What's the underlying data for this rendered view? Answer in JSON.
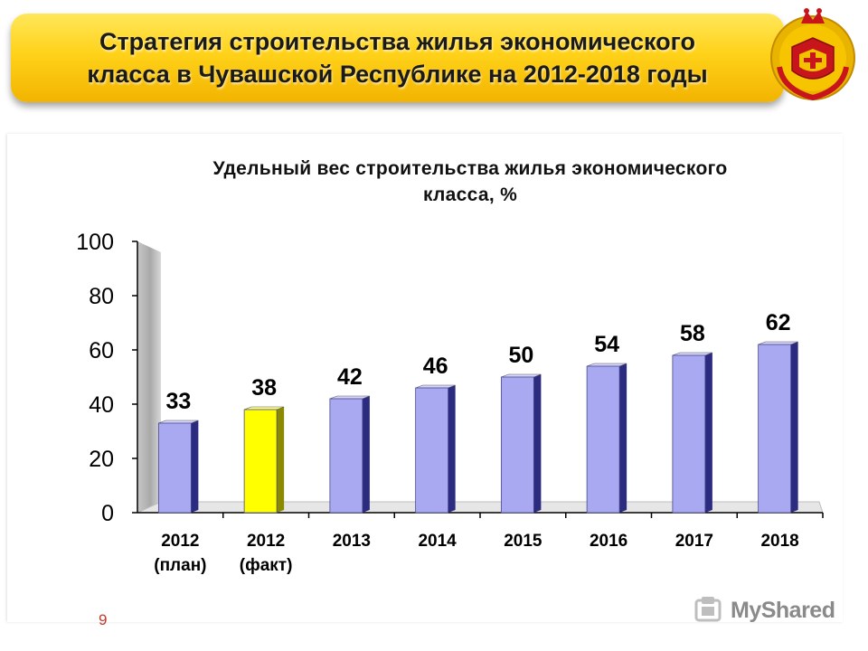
{
  "header": {
    "title_line1": "Стратегия строительства жилья экономического",
    "title_line2": "класса в Чувашской Республике на 2012-2018 годы"
  },
  "page_number": "9",
  "watermark": "MyShared",
  "colors": {
    "banner": "#ffd21a",
    "bar": "#a9a9f2",
    "bar_highlight": "#ffff00",
    "page_number": "#c0392b"
  },
  "chart_data": {
    "type": "bar",
    "title_line1": "Удельный вес строительства  жилья экономического",
    "title_line2": "класса, %",
    "categories": [
      [
        "2012",
        "(план)"
      ],
      [
        "2012",
        "(факт)"
      ],
      [
        "2013"
      ],
      [
        "2014"
      ],
      [
        "2015"
      ],
      [
        "2016"
      ],
      [
        "2017"
      ],
      [
        "2018"
      ]
    ],
    "values": [
      33,
      38,
      42,
      46,
      50,
      54,
      58,
      62
    ],
    "labels": [
      "33",
      "38",
      "42",
      "46",
      "50",
      "54",
      "58",
      "62"
    ],
    "highlight_index": 1,
    "ylim": [
      0,
      100
    ],
    "yticks": [
      0,
      20,
      40,
      60,
      80,
      100
    ],
    "grid": false,
    "legend": "none",
    "style": "3d"
  }
}
